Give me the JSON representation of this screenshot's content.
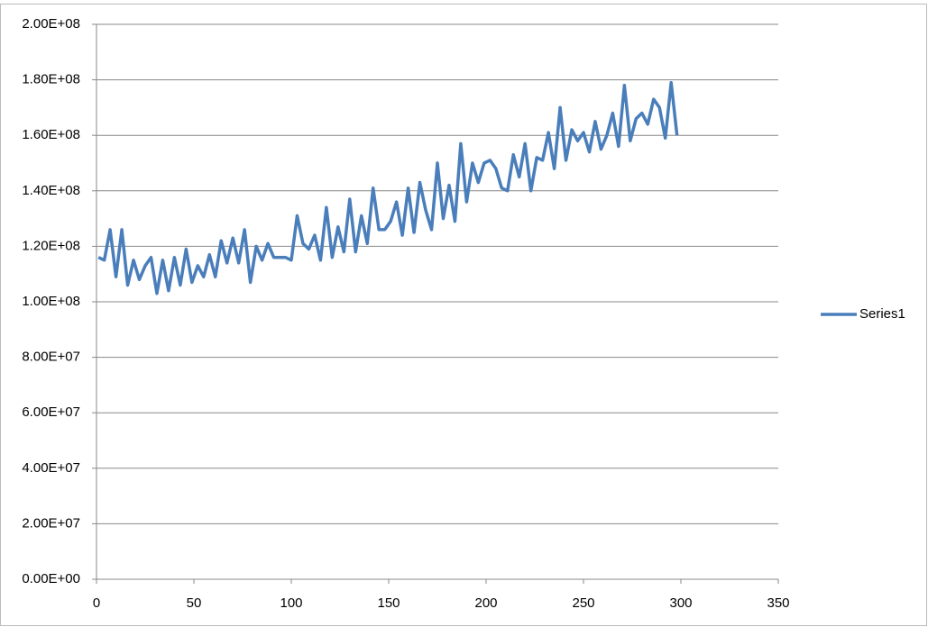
{
  "chart_data": {
    "type": "line",
    "x": [
      1,
      4,
      7,
      10,
      13,
      16,
      19,
      22,
      25,
      28,
      31,
      34,
      37,
      40,
      43,
      46,
      49,
      52,
      55,
      58,
      61,
      64,
      67,
      70,
      73,
      76,
      79,
      82,
      85,
      88,
      91,
      94,
      97,
      100,
      103,
      106,
      109,
      112,
      115,
      118,
      121,
      124,
      127,
      130,
      133,
      136,
      139,
      142,
      145,
      148,
      151,
      154,
      157,
      160,
      163,
      166,
      169,
      172,
      175,
      178,
      181,
      184,
      187,
      190,
      193,
      196,
      199,
      202,
      205,
      208,
      211,
      214,
      217,
      220,
      223,
      226,
      229,
      232,
      235,
      238,
      241,
      244,
      247,
      250,
      253,
      256,
      259,
      262,
      265,
      268,
      271,
      274,
      277,
      280,
      283,
      286,
      289,
      292,
      295,
      298
    ],
    "series": [
      {
        "name": "Series1",
        "color": "#4a7ebb",
        "values": [
          116000000,
          115000000,
          126000000,
          109000000,
          126000000,
          106000000,
          115000000,
          108000000,
          113000000,
          116000000,
          103000000,
          115000000,
          104000000,
          116000000,
          106000000,
          119000000,
          107000000,
          113000000,
          109000000,
          117000000,
          109000000,
          122000000,
          114000000,
          123000000,
          114000000,
          126000000,
          107000000,
          120000000,
          115000000,
          121000000,
          116000000,
          116000000,
          116000000,
          115000000,
          131000000,
          121000000,
          119000000,
          124000000,
          115000000,
          134000000,
          116000000,
          127000000,
          118000000,
          137000000,
          118000000,
          131000000,
          121000000,
          141000000,
          126000000,
          126000000,
          129000000,
          136000000,
          124000000,
          141000000,
          125000000,
          143000000,
          133000000,
          126000000,
          150000000,
          130000000,
          142000000,
          129000000,
          157000000,
          136000000,
          150000000,
          143000000,
          150000000,
          151000000,
          148000000,
          141000000,
          140000000,
          153000000,
          145000000,
          157000000,
          140000000,
          152000000,
          151000000,
          161000000,
          148000000,
          170000000,
          151000000,
          162000000,
          158000000,
          161000000,
          154000000,
          165000000,
          155000000,
          160000000,
          168000000,
          156000000,
          178000000,
          158000000,
          166000000,
          168000000,
          164000000,
          173000000,
          170000000,
          159000000,
          179000000,
          160000000
        ]
      }
    ],
    "xlim": [
      0,
      350
    ],
    "xticks": [
      0,
      50,
      100,
      150,
      200,
      250,
      300,
      350
    ],
    "ylim": [
      0,
      200000000
    ],
    "yticks": [
      {
        "value": 0,
        "label": "0.00E+00"
      },
      {
        "value": 20000000,
        "label": "2.00E+07"
      },
      {
        "value": 40000000,
        "label": "4.00E+07"
      },
      {
        "value": 60000000,
        "label": "6.00E+07"
      },
      {
        "value": 80000000,
        "label": "8.00E+07"
      },
      {
        "value": 100000000,
        "label": "1.00E+08"
      },
      {
        "value": 120000000,
        "label": "1.20E+08"
      },
      {
        "value": 140000000,
        "label": "1.40E+08"
      },
      {
        "value": 160000000,
        "label": "1.60E+08"
      },
      {
        "value": 180000000,
        "label": "1.80E+08"
      },
      {
        "value": 200000000,
        "label": "2.00E+08"
      }
    ],
    "grid": true,
    "legend": "right"
  }
}
